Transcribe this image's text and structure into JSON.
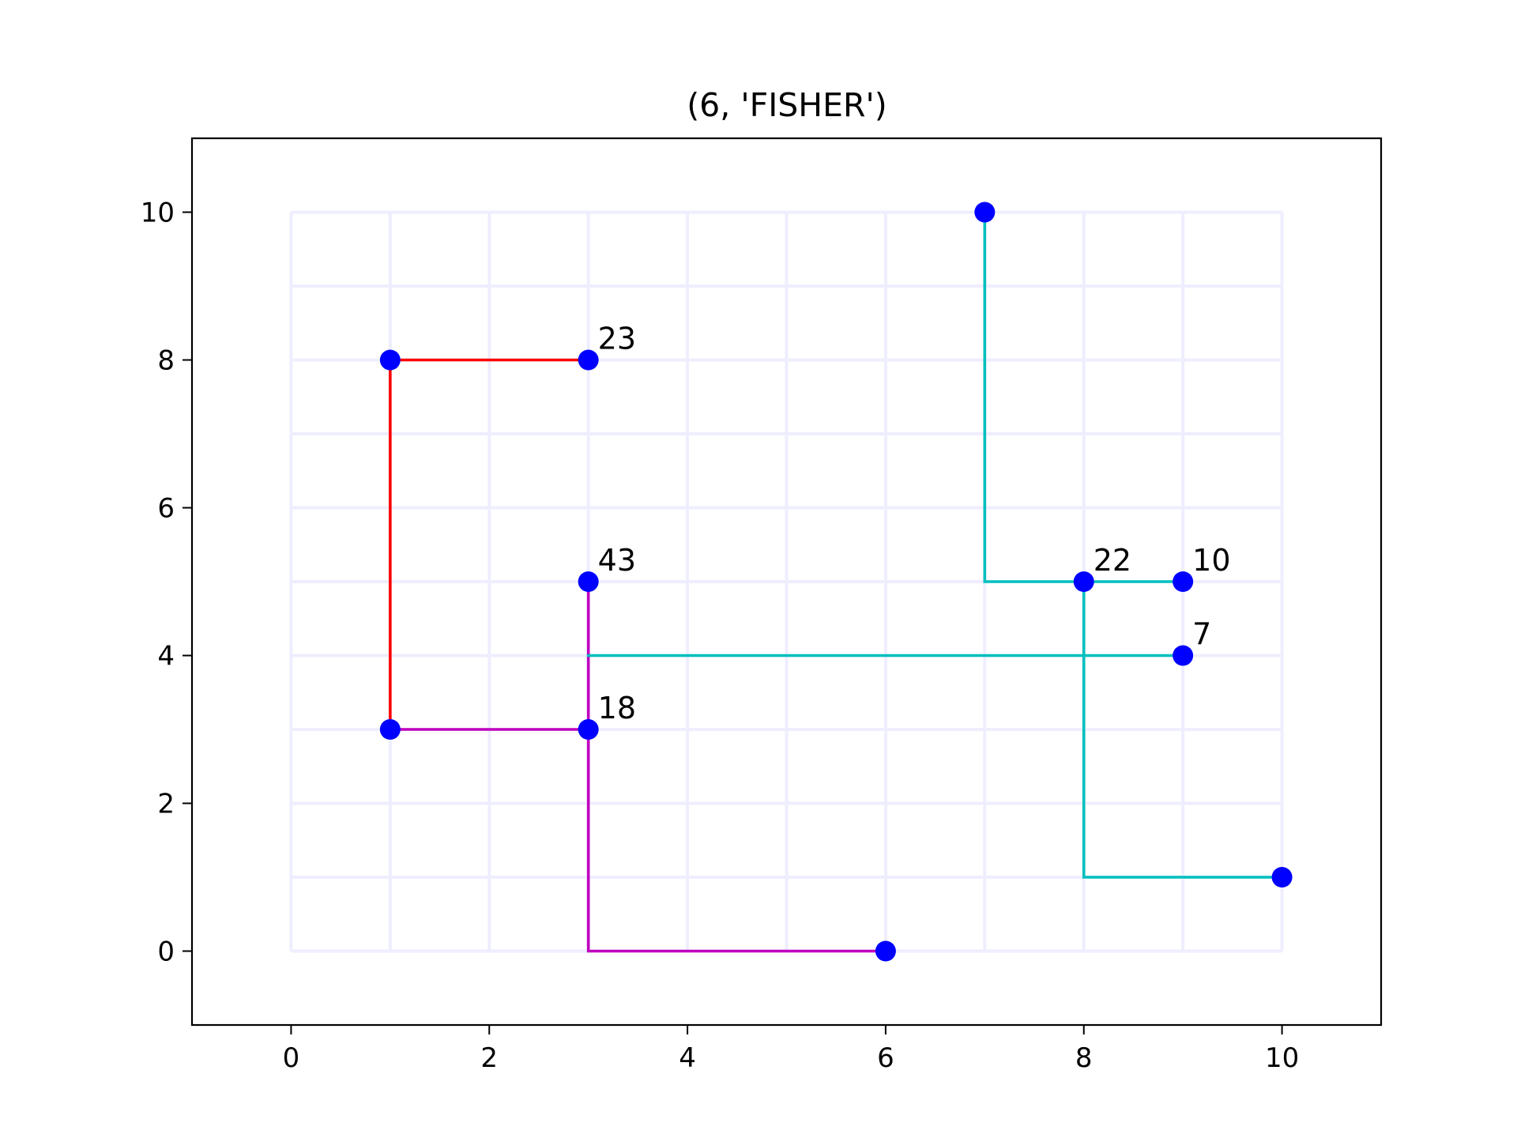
{
  "chart_data": {
    "type": "line",
    "title": "(6, 'FISHER')",
    "xlabel": "",
    "ylabel": "",
    "xlim": [
      -1,
      11
    ],
    "ylim": [
      -1,
      11
    ],
    "xticks": [
      0,
      2,
      4,
      6,
      8,
      10
    ],
    "yticks": [
      0,
      2,
      4,
      6,
      8,
      10
    ],
    "grid": {
      "shown": true,
      "x_range": [
        0,
        10
      ],
      "y_range": [
        0,
        10
      ],
      "step": 1,
      "color": "#eeeeff"
    },
    "series": [
      {
        "color": "#ff0000",
        "points": [
          [
            3,
            8
          ],
          [
            1,
            8
          ],
          [
            1,
            3
          ]
        ]
      },
      {
        "color": "#bf00bf",
        "points": [
          [
            1,
            3
          ],
          [
            3,
            3
          ]
        ]
      },
      {
        "color": "#bf00bf",
        "points": [
          [
            3,
            5
          ],
          [
            3,
            0
          ],
          [
            6,
            0
          ]
        ]
      },
      {
        "color": "#00bfbf",
        "points": [
          [
            7,
            10
          ],
          [
            7,
            5
          ],
          [
            9,
            5
          ]
        ]
      },
      {
        "color": "#00bfbf",
        "points": [
          [
            3,
            4
          ],
          [
            9,
            4
          ]
        ]
      },
      {
        "color": "#00bfbf",
        "points": [
          [
            8,
            5
          ],
          [
            8,
            1
          ],
          [
            10,
            1
          ]
        ]
      }
    ],
    "marker_color": "#0000ff",
    "markers": [
      {
        "x": 1,
        "y": 8
      },
      {
        "x": 3,
        "y": 8,
        "label": "23"
      },
      {
        "x": 1,
        "y": 3
      },
      {
        "x": 3,
        "y": 3,
        "label": "18"
      },
      {
        "x": 3,
        "y": 5,
        "label": "43"
      },
      {
        "x": 6,
        "y": 0
      },
      {
        "x": 7,
        "y": 10
      },
      {
        "x": 8,
        "y": 5,
        "label": "22"
      },
      {
        "x": 9,
        "y": 5,
        "label": "10"
      },
      {
        "x": 9,
        "y": 4,
        "label": "7"
      },
      {
        "x": 10,
        "y": 1
      }
    ]
  }
}
